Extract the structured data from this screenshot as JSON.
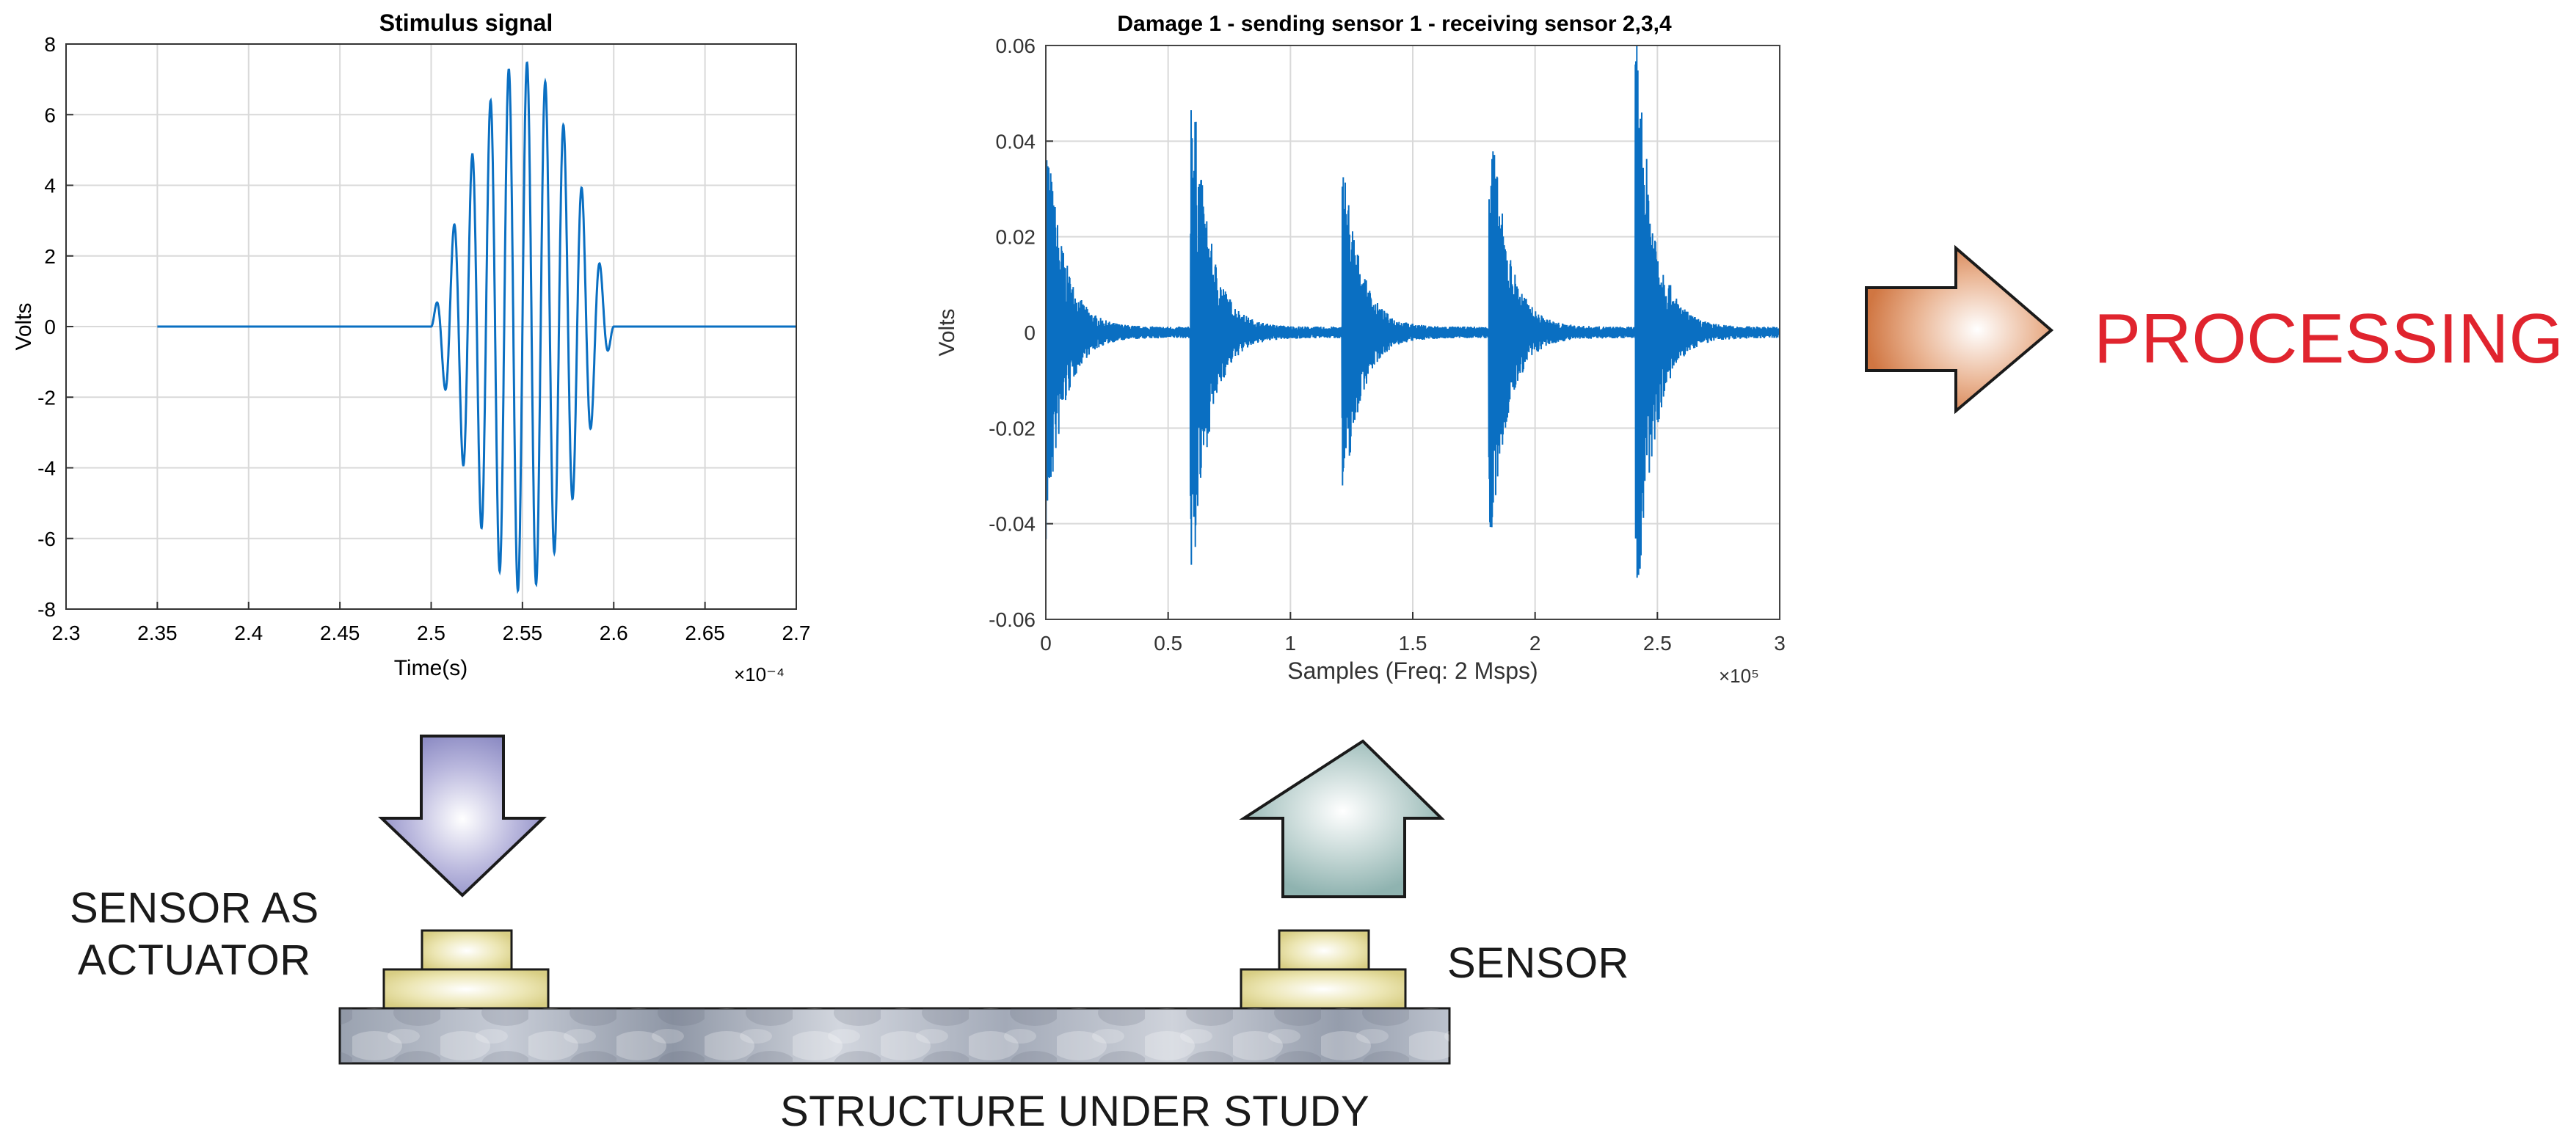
{
  "labels": {
    "processing": "PROCESSING",
    "actuator_line1": "SENSOR AS",
    "actuator_line2": "ACTUATOR",
    "sensor": "SENSOR",
    "structure": "STRUCTURE UNDER STUDY"
  },
  "colors": {
    "signal": "#0a6fc2",
    "grid": "#d9d9d9",
    "processing_text": "#e0242e",
    "arrow_down": "#8d8cc4",
    "arrow_up": "#8fb3b0",
    "arrow_right": "#d98552",
    "transducer": "#e4dc9a"
  },
  "chart_data": [
    {
      "type": "line",
      "title": "Stimulus signal",
      "xlabel": "Time(s)",
      "ylabel": "Volts",
      "x_multiplier": "×10⁻⁴",
      "xlim": [
        2.3,
        2.7
      ],
      "ylim": [
        -8,
        8
      ],
      "xticks": [
        "2.3",
        "2.35",
        "2.4",
        "2.45",
        "2.5",
        "2.55",
        "2.6",
        "2.65",
        "2.7"
      ],
      "yticks": [
        "8",
        "6",
        "4",
        "2",
        "0",
        "-2",
        "-4",
        "-6",
        "-8"
      ],
      "grid": true,
      "series": [
        {
          "style": "tone burst, flat before and after",
          "x_start": 2.35,
          "x_end": 2.7,
          "burst_start": 2.5,
          "burst_end": 2.6,
          "peak": 7.5,
          "cycles": 10
        }
      ]
    },
    {
      "type": "line",
      "title": "Damage 1 - sending sensor 1 - receiving sensor 2,3,4",
      "xlabel": "Samples (Freq: 2 Msps)",
      "ylabel": "Volts",
      "x_multiplier": "×10⁵",
      "xlim": [
        0,
        3
      ],
      "ylim": [
        -0.06,
        0.06
      ],
      "xticks": [
        "0",
        "0.5",
        "1",
        "1.5",
        "2",
        "2.5",
        "3"
      ],
      "yticks": [
        "0.06",
        "0.04",
        "0.02",
        "0",
        "-0.02",
        "-0.04",
        "-0.06"
      ],
      "grid": true,
      "series": [
        {
          "style": "decaying bursts",
          "bursts": [
            {
              "x": 0.0,
              "peak": 0.045
            },
            {
              "x": 0.6,
              "peak": 0.053
            },
            {
              "x": 1.22,
              "peak": 0.035
            },
            {
              "x": 1.82,
              "peak": 0.046
            },
            {
              "x": 2.42,
              "peak": 0.059
            }
          ]
        }
      ]
    }
  ]
}
